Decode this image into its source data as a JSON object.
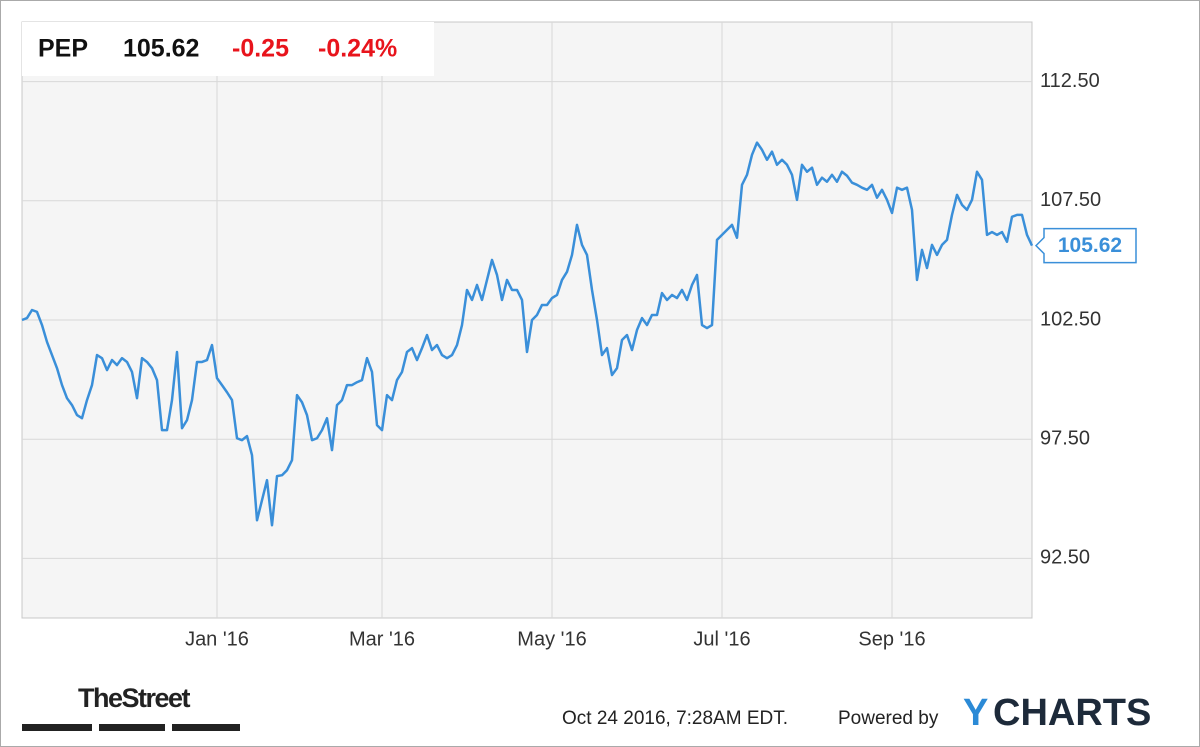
{
  "chart_data": {
    "type": "line",
    "series": [
      {
        "name": "PEP",
        "color": "#3a8fd9",
        "values": [
          102.5,
          102.58,
          102.92,
          102.84,
          102.29,
          101.58,
          101.03,
          100.48,
          99.77,
          99.22,
          98.93,
          98.51,
          98.38,
          99.14,
          99.77,
          101.03,
          100.9,
          100.4,
          100.82,
          100.61,
          100.9,
          100.74,
          100.32,
          99.22,
          100.9,
          100.74,
          100.48,
          99.98,
          97.88,
          97.88,
          99.14,
          101.16,
          97.96,
          98.3,
          99.14,
          100.74,
          100.74,
          100.82,
          101.45,
          100.06,
          99.77,
          99.47,
          99.14,
          97.54,
          97.46,
          97.63,
          96.83,
          94.1,
          94.94,
          95.78,
          93.89,
          95.95,
          95.99,
          96.2,
          96.62,
          99.35,
          99.05,
          98.51,
          97.46,
          97.54,
          97.88,
          98.38,
          97.04,
          98.93,
          99.14,
          99.77,
          99.77,
          99.89,
          99.98,
          100.9,
          100.32,
          98.09,
          97.88,
          99.35,
          99.14,
          99.98,
          100.32,
          101.16,
          101.32,
          100.82,
          101.32,
          101.87,
          101.24,
          101.45,
          101.03,
          100.9,
          101.03,
          101.45,
          102.29,
          103.76,
          103.34,
          103.97,
          103.34,
          104.18,
          105.02,
          104.39,
          103.34,
          104.18,
          103.76,
          103.76,
          103.34,
          101.16,
          102.5,
          102.71,
          103.13,
          103.13,
          103.42,
          103.55,
          104.18,
          104.52,
          105.23,
          106.49,
          105.65,
          105.23,
          103.76,
          102.5,
          101.03,
          101.32,
          100.19,
          100.48,
          101.66,
          101.87,
          101.24,
          102.08,
          102.58,
          102.29,
          102.71,
          102.71,
          103.63,
          103.34,
          103.55,
          103.42,
          103.76,
          103.34,
          103.97,
          104.39,
          102.29,
          102.16,
          102.29,
          105.86,
          106.07,
          106.28,
          106.49,
          105.95,
          108.17,
          108.59,
          109.43,
          109.94,
          109.64,
          109.22,
          109.56,
          109.01,
          109.22,
          109.01,
          108.59,
          107.54,
          109.01,
          108.72,
          108.89,
          108.17,
          108.47,
          108.3,
          108.59,
          108.3,
          108.72,
          108.55,
          108.26,
          108.17,
          108.05,
          107.96,
          108.17,
          107.63,
          107.96,
          107.54,
          106.99,
          108.05,
          107.96,
          108.05,
          107.12,
          104.18,
          105.44,
          104.68,
          105.65,
          105.23,
          105.65,
          105.86,
          106.91,
          107.75,
          107.33,
          107.12,
          107.54,
          108.72,
          108.38,
          106.07,
          106.19,
          106.07,
          106.19,
          105.78,
          106.83,
          106.91,
          106.91,
          106.07,
          105.62
        ]
      }
    ],
    "categories": [
      null,
      null,
      null,
      null,
      null,
      null,
      null,
      null,
      null,
      null,
      null,
      null,
      null,
      null,
      null,
      null,
      null,
      null,
      null,
      null,
      null,
      null,
      null,
      null,
      null,
      null,
      null,
      null,
      null,
      null,
      null,
      null,
      null,
      null,
      null,
      null,
      null,
      null,
      null,
      "Jan '16",
      null,
      null,
      null,
      null,
      null,
      null,
      null,
      null,
      null,
      null,
      null,
      null,
      null,
      null,
      null,
      null,
      null,
      null,
      null,
      null,
      null,
      null,
      null,
      null,
      null,
      null,
      null,
      null,
      null,
      null,
      null,
      null,
      "Mar '16",
      null,
      null,
      null,
      null,
      null,
      null,
      null,
      null,
      null,
      null,
      null,
      null,
      null,
      null,
      null,
      null,
      null,
      null,
      null,
      null,
      null,
      null,
      null,
      null,
      null,
      null,
      null,
      null,
      null,
      null,
      null,
      null,
      null,
      "May '16",
      null,
      null,
      null,
      null,
      null,
      null,
      null,
      null,
      null,
      null,
      null,
      null,
      null,
      null,
      null,
      null,
      null,
      null,
      null,
      null,
      null,
      null,
      null,
      null,
      null,
      null,
      null,
      null,
      null,
      null,
      null,
      null,
      null,
      "Jul '16",
      null,
      null,
      null,
      null,
      null,
      null,
      null,
      null,
      null,
      null,
      null,
      null,
      null,
      null,
      null,
      null,
      null,
      null,
      null,
      null,
      null,
      null,
      null,
      null,
      null,
      null,
      null,
      null,
      null,
      null,
      null,
      null,
      null,
      "Sep '16",
      null,
      null,
      null,
      null,
      null,
      null,
      null,
      null,
      null,
      null,
      null,
      null,
      null,
      null,
      null,
      null,
      null,
      null,
      null,
      null,
      null,
      null,
      null,
      null,
      null,
      null,
      null,
      null
    ],
    "ylim": [
      90,
      115
    ],
    "yticks": [
      {
        "value": 92.5,
        "label": "92.50"
      },
      {
        "value": 97.5,
        "label": "97.50"
      },
      {
        "value": 102.5,
        "label": "102.50"
      },
      {
        "value": 107.5,
        "label": "107.50"
      },
      {
        "value": 112.5,
        "label": "112.50"
      }
    ],
    "grid": true,
    "change": -0.25,
    "change_percent": "-0.24%"
  },
  "footer": {
    "brand": "TheStreet",
    "timestamp": "Oct 24 2016, 7:28AM EDT.",
    "powered_by": "Powered by",
    "logo_y": "Y",
    "logo_rest": "CHARTS"
  }
}
